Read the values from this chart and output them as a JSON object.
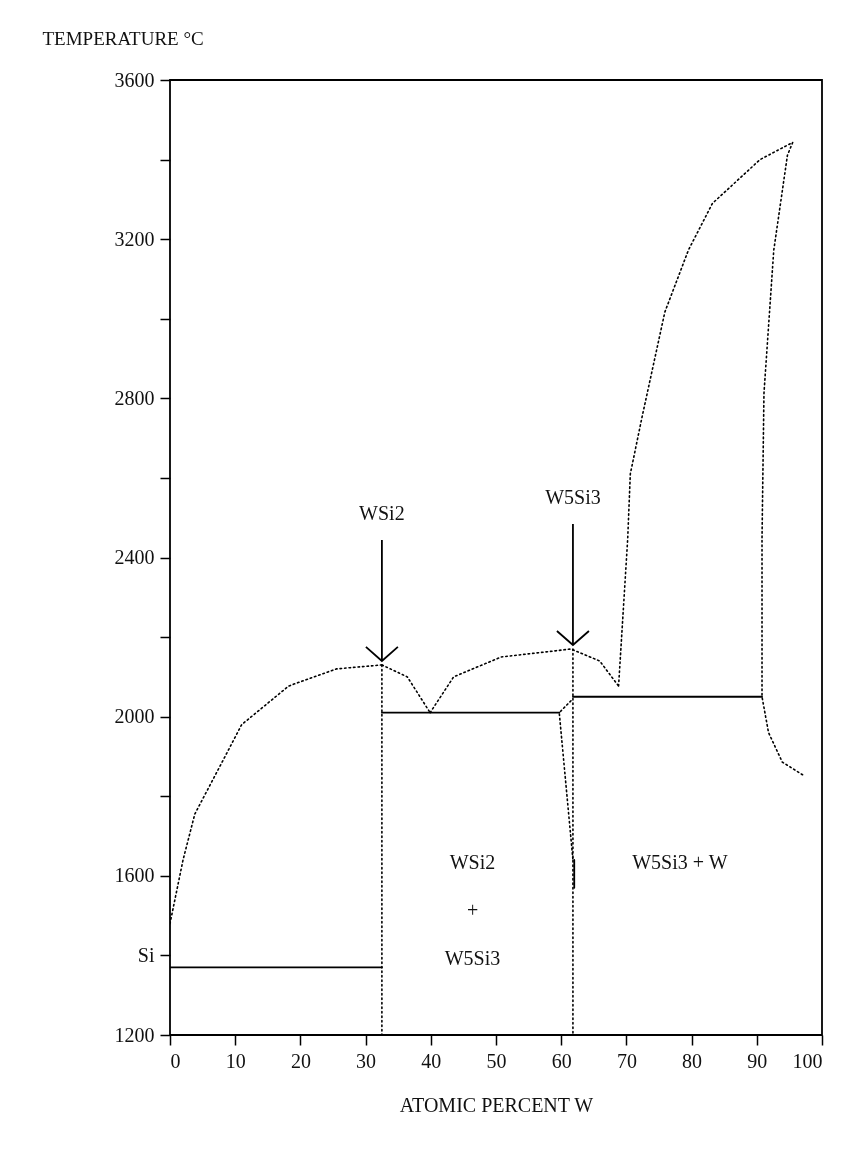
{
  "chart_data": {
    "type": "line",
    "xlabel": "ATOMIC PERCENT  W",
    "ylabel": "TEMPERATURE °C",
    "xlim": [
      0,
      100
    ],
    "ylim": [
      1200,
      3600
    ],
    "xticks": [
      0,
      10,
      20,
      30,
      40,
      50,
      60,
      70,
      80,
      90,
      100
    ],
    "yticks": [
      1200,
      {
        "value": 1400,
        "label": "Si"
      },
      1600,
      {
        "value": 1800,
        "label": null
      },
      2000,
      {
        "value": 2200,
        "label": null
      },
      2400,
      {
        "value": 2600,
        "label": null
      },
      2800,
      {
        "value": 3000,
        "label": null
      },
      3200,
      {
        "value": 3400,
        "label": null
      },
      3600
    ],
    "grid": false,
    "series": [
      {
        "color": "#000000",
        "line_style": "dotted",
        "x": [
          0,
          2,
          3.8,
          11,
          18.2,
          25.5,
          32.5
        ],
        "values": [
          1480,
          1640,
          1755,
          1980,
          2077,
          2120,
          2130
        ]
      },
      {
        "color": "#000000",
        "line_style": "dotted",
        "x": [
          32.5,
          36.4,
          39.9
        ],
        "values": [
          2130,
          2100,
          2010
        ]
      },
      {
        "color": "#000000",
        "line_style": "dotted",
        "x": [
          39.9,
          43.5,
          50.8,
          61.5,
          65.9,
          68.8
        ],
        "values": [
          2010,
          2100,
          2150,
          2170,
          2140,
          2077
        ]
      },
      {
        "color": "#000000",
        "line_style": "dotted",
        "x": [
          68.8,
          70.2,
          70.6,
          72.4,
          75.9,
          79.5,
          83.2,
          90.5,
          95.5
        ],
        "values": [
          2077,
          2447,
          2610,
          2753,
          3017,
          3172,
          3290,
          3400,
          3443
        ]
      },
      {
        "color": "#000000",
        "line_style": "dotted",
        "x": [
          95.5,
          94.7,
          92.6,
          91.1,
          90.8,
          90.8,
          91.8,
          93.9,
          97.3
        ],
        "values": [
          3443,
          3411,
          3172,
          2813,
          2447,
          2050,
          1960,
          1886,
          1851
        ]
      },
      {
        "color": "#000000",
        "line_style": "dotted",
        "x": [
          32.5,
          32.5
        ],
        "values": [
          2130,
          1200
        ]
      },
      {
        "color": "#000000",
        "line_style": "dotted",
        "x": [
          61.8,
          61.8
        ],
        "values": [
          2170,
          1200
        ]
      },
      {
        "color": "#000000",
        "line_style": "dotted",
        "x": [
          61.5,
          59.7,
          61.8
        ],
        "values": [
          2040,
          2010,
          1640
        ]
      },
      {
        "color": "#000000",
        "line_style": "solid",
        "x": [
          0,
          32.5
        ],
        "values": [
          1370,
          1370
        ]
      },
      {
        "color": "#000000",
        "line_style": "solid",
        "x": [
          32.5,
          59.7
        ],
        "values": [
          2010,
          2010
        ]
      },
      {
        "color": "#000000",
        "line_style": "solid",
        "x": [
          61.8,
          90.8
        ],
        "values": [
          2050,
          2050
        ]
      },
      {
        "color": "#000000",
        "line_style": "solid",
        "x": [
          62,
          62
        ],
        "values": [
          1640,
          1570
        ]
      }
    ],
    "annotations": [
      {
        "text": "WSi2",
        "x": 32.5,
        "y": 2130
      },
      {
        "text": "W5Si3",
        "x": 61.8,
        "y": 2170
      },
      "WSi2 + W5Si3",
      "W5Si3 + W"
    ]
  }
}
